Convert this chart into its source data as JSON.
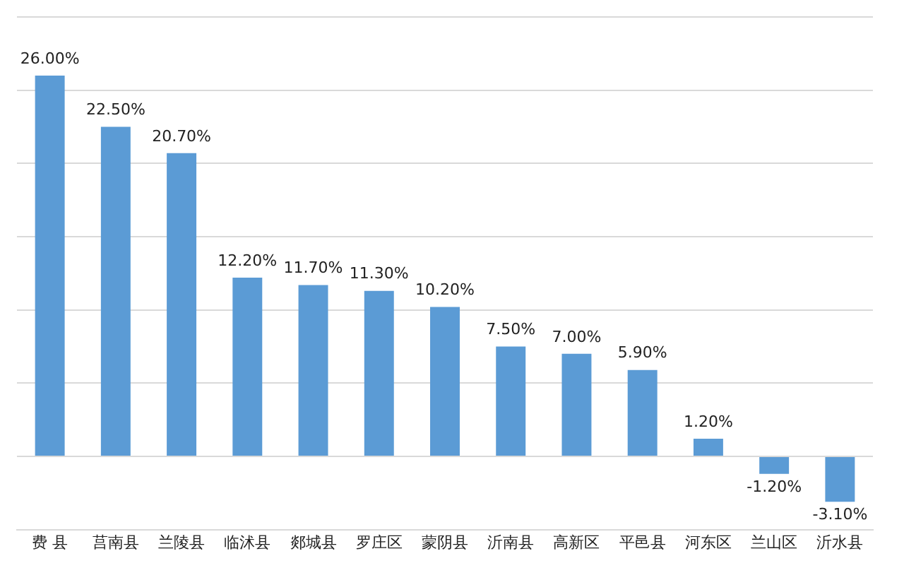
{
  "chart_data": {
    "type": "bar",
    "categories": [
      "费 县",
      "莒南县",
      "兰陵县",
      "临沭县",
      "郯城县",
      "罗庄区",
      "蒙阴县",
      "沂南县",
      "高新区",
      "平邑县",
      "河东区",
      "兰山区",
      "沂水县"
    ],
    "values": [
      26.0,
      22.5,
      20.7,
      12.2,
      11.7,
      11.3,
      10.2,
      7.5,
      7.0,
      5.9,
      1.2,
      -1.2,
      -3.1
    ],
    "value_labels": [
      "26.00%",
      "22.50%",
      "20.70%",
      "12.20%",
      "11.70%",
      "11.30%",
      "10.20%",
      "7.50%",
      "7.00%",
      "5.90%",
      "1.20%",
      "-1.20%",
      "-3.10%"
    ],
    "color": "#5b9bd5",
    "ylim": [
      -5,
      30
    ],
    "yticks": [
      {
        "value": 0,
        "label": null
      },
      {
        "value": 5,
        "label": null
      },
      {
        "value": 10,
        "label": null
      },
      {
        "value": 15,
        "label": null
      },
      {
        "value": 20,
        "label": null
      },
      {
        "value": 25,
        "label": null
      },
      {
        "value": 30,
        "label": null
      }
    ],
    "tick_labels": "x",
    "grid": "y",
    "legend": false
  }
}
